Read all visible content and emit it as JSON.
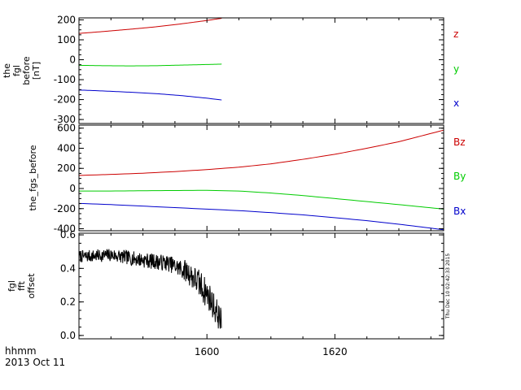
{
  "chart_data": [
    {
      "type": "line",
      "ylabel": [
        "the",
        "fgl",
        "before",
        "[nT]"
      ],
      "ylim": [
        -320,
        210
      ],
      "yticks": [
        200,
        100,
        0,
        -100,
        -200,
        -300
      ],
      "xlim": [
        1580,
        1637
      ],
      "series": [
        {
          "name": "z",
          "color": "#cc0000",
          "x": [
            1580,
            1584,
            1588,
            1592,
            1596,
            1600,
            1602.3
          ],
          "y": [
            132,
            142,
            153,
            165,
            180,
            197,
            208
          ]
        },
        {
          "name": "y",
          "color": "#00cc00",
          "x": [
            1580,
            1584,
            1588,
            1592,
            1596,
            1600,
            1602.3
          ],
          "y": [
            -28,
            -30,
            -31,
            -30,
            -27,
            -24,
            -22
          ]
        },
        {
          "name": "x",
          "color": "#0000cc",
          "x": [
            1580,
            1584,
            1588,
            1592,
            1596,
            1600,
            1602.3
          ],
          "y": [
            -152,
            -157,
            -163,
            -170,
            -180,
            -193,
            -202
          ]
        }
      ]
    },
    {
      "type": "line",
      "ylabel": [
        "the_fgs_before"
      ],
      "ylim": [
        -420,
        630
      ],
      "yticks": [
        600,
        400,
        200,
        0,
        -200,
        -400
      ],
      "xlim": [
        1580,
        1637
      ],
      "series": [
        {
          "name": "Bz",
          "color": "#cc0000",
          "x": [
            1580,
            1585,
            1590,
            1595,
            1600,
            1605,
            1610,
            1615,
            1620,
            1625,
            1630,
            1637
          ],
          "y": [
            130,
            140,
            152,
            168,
            188,
            212,
            245,
            290,
            340,
            400,
            465,
            580
          ]
        },
        {
          "name": "By",
          "color": "#00cc00",
          "x": [
            1580,
            1585,
            1590,
            1595,
            1600,
            1605,
            1610,
            1615,
            1620,
            1625,
            1630,
            1637
          ],
          "y": [
            -25,
            -25,
            -22,
            -20,
            -18,
            -25,
            -45,
            -70,
            -100,
            -130,
            -160,
            -205
          ]
        },
        {
          "name": "Bx",
          "color": "#0000cc",
          "x": [
            1580,
            1585,
            1590,
            1595,
            1600,
            1605,
            1610,
            1615,
            1620,
            1625,
            1630,
            1637
          ],
          "y": [
            -148,
            -160,
            -175,
            -190,
            -205,
            -220,
            -240,
            -262,
            -290,
            -320,
            -355,
            -410
          ]
        }
      ]
    },
    {
      "type": "line",
      "ylabel": [
        "fgl",
        "fft",
        "offset"
      ],
      "ylim": [
        -0.02,
        0.61
      ],
      "yticks": [
        0.6,
        0.4,
        0.2,
        0.0
      ],
      "xlim": [
        1580,
        1637
      ],
      "noise": {
        "seed": 7,
        "x_start": 1580,
        "x_end": 1602.3,
        "step": 0.06,
        "trend_x": [
          1580,
          1585,
          1590,
          1594,
          1597,
          1599,
          1600.5,
          1601.5,
          1602.3
        ],
        "trend_y": [
          0.47,
          0.48,
          0.45,
          0.43,
          0.38,
          0.3,
          0.22,
          0.14,
          0.08
        ],
        "amp_x": [
          1580,
          1595,
          1599,
          1602.3
        ],
        "amp_y": [
          0.035,
          0.05,
          0.09,
          0.08
        ]
      },
      "series": [
        {
          "color": "#000000"
        }
      ]
    }
  ],
  "xaxis": {
    "ticks": [
      1600,
      1620
    ],
    "labels": [
      "1600",
      "1620"
    ]
  },
  "footer": {
    "line1": "hhmm",
    "line2": "2013 Oct 11"
  },
  "timestamp": "Thu Dec 10 02:42:33 2015"
}
